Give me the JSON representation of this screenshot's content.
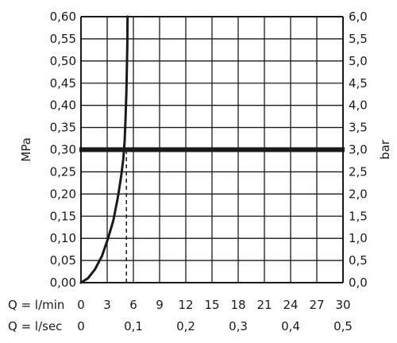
{
  "chart_data": {
    "type": "line",
    "title": "",
    "x_rows": [
      {
        "label": "Q = l/min",
        "ticks": [
          "0",
          "3",
          "6",
          "9",
          "12",
          "15",
          "18",
          "21",
          "24",
          "27",
          "30"
        ],
        "tick_values": [
          0,
          3,
          6,
          9,
          12,
          15,
          18,
          21,
          24,
          27,
          30
        ]
      },
      {
        "label": "Q = l/sec",
        "ticks": [
          "0",
          "0,1",
          "0,2",
          "0,3",
          "0,4",
          "0,5"
        ],
        "tick_values": [
          0,
          6,
          12,
          18,
          24,
          30
        ]
      }
    ],
    "xlim": [
      0,
      30
    ],
    "y_left": {
      "label": "MPa",
      "ylim": [
        0,
        0.6
      ],
      "ticks": [
        "0,00",
        "0,05",
        "0,10",
        "0,15",
        "0,20",
        "0,25",
        "0,30",
        "0,35",
        "0,40",
        "0,45",
        "0,50",
        "0,55",
        "0,60"
      ],
      "tick_values": [
        0,
        0.05,
        0.1,
        0.15,
        0.2,
        0.25,
        0.3,
        0.35,
        0.4,
        0.45,
        0.5,
        0.55,
        0.6
      ]
    },
    "y_right": {
      "label": "bar",
      "ticks": [
        "0,0",
        "0,5",
        "1,0",
        "1,5",
        "2,0",
        "2,5",
        "3,0",
        "3,5",
        "4,0",
        "4,5",
        "5,0",
        "5,5",
        "6,0"
      ]
    },
    "grid": true,
    "series": [
      {
        "color": "#1a1a1a",
        "x": [
          0,
          0.8,
          1.6,
          2.4,
          3.1,
          3.7,
          4.2,
          4.6,
          4.85,
          5.0,
          5.1,
          5.2,
          5.25,
          5.3,
          5.32,
          5.33
        ],
        "y": [
          0,
          0.01,
          0.03,
          0.06,
          0.1,
          0.14,
          0.19,
          0.24,
          0.28,
          0.32,
          0.37,
          0.43,
          0.48,
          0.53,
          0.57,
          0.6
        ]
      }
    ],
    "reference_line": {
      "y": 0.3,
      "style": "thick"
    },
    "reference_marker": {
      "x": 5.2,
      "y_from": 0,
      "y_to": 0.3,
      "style": "dashed"
    }
  }
}
